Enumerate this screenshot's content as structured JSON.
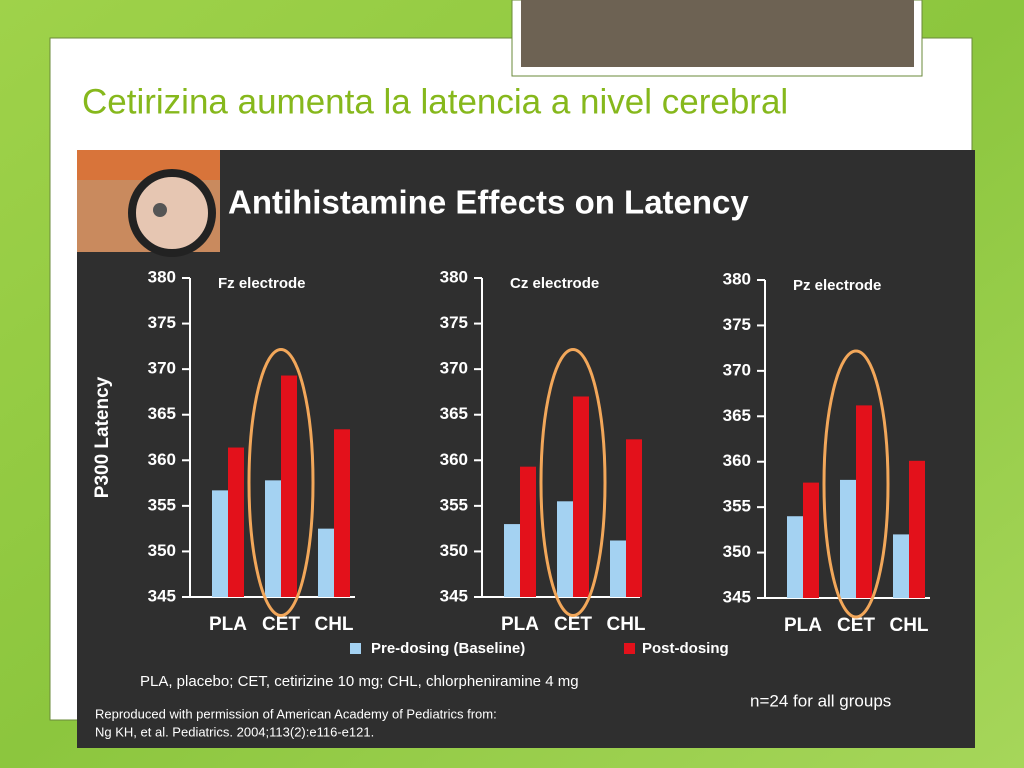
{
  "slide": {
    "title": "Cetirizina aumenta la latencia a nivel cerebral"
  },
  "figure": {
    "title": "Antihistamine Effects on Latency",
    "legend": [
      {
        "name": "Pre-dosing (Baseline)",
        "color": "#a4d2f2"
      },
      {
        "name": "Post-dosing",
        "color": "#e3111b"
      }
    ],
    "footnote": "PLA, placebo; CET, cetirizine 10 mg; CHL, chlorpheniramine 4 mg",
    "note": "n=24 for all groups",
    "credit_1": "Reproduced with permission of American Academy of Pediatrics from:",
    "credit_2": "Ng KH, et al. Pediatrics. 2004;113(2):e116-e121."
  },
  "chart_data": [
    {
      "type": "bar",
      "title": "Fz electrode",
      "y_label": "P300 Latency",
      "categories": [
        "PLA",
        "CET",
        "CHL"
      ],
      "series": [
        {
          "color": "#a4d2f2",
          "values": [
            356.7,
            357.8,
            352.5
          ]
        },
        {
          "color": "#e3111b",
          "values": [
            361.4,
            369.3,
            363.4
          ]
        }
      ],
      "ylim": [
        345,
        380
      ],
      "yticks": [
        345,
        350,
        355,
        360,
        365,
        370,
        375,
        380
      ]
    },
    {
      "type": "bar",
      "title": "Cz electrode",
      "categories": [
        "PLA",
        "CET",
        "CHL"
      ],
      "series": [
        {
          "color": "#a4d2f2",
          "values": [
            353.0,
            355.5,
            351.2
          ]
        },
        {
          "color": "#e3111b",
          "values": [
            359.3,
            367.0,
            362.3
          ]
        }
      ],
      "ylim": [
        345,
        380
      ],
      "yticks": [
        345,
        350,
        355,
        360,
        365,
        370,
        375,
        380
      ]
    },
    {
      "type": "bar",
      "title": "Pz electrode",
      "categories": [
        "PLA",
        "CET",
        "CHL"
      ],
      "series": [
        {
          "color": "#a4d2f2",
          "values": [
            354.0,
            358.0,
            352.0
          ]
        },
        {
          "color": "#e3111b",
          "values": [
            357.7,
            366.2,
            360.1
          ]
        }
      ],
      "ylim": [
        345,
        380
      ],
      "yticks": [
        345,
        350,
        355,
        360,
        365,
        370,
        375,
        380
      ]
    }
  ]
}
